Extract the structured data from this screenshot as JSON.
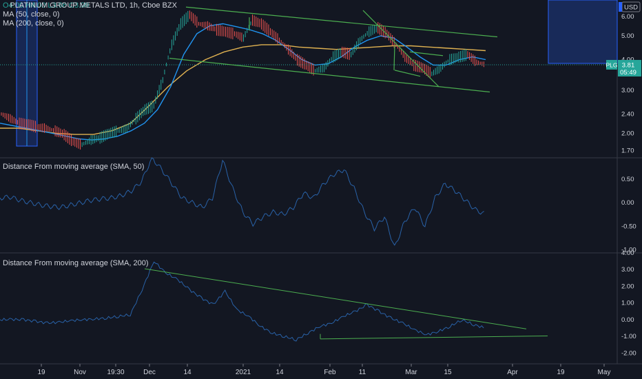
{
  "legend": {
    "symbol_line": "PLATINUM GROUP METALS LTD, 1h, Cboe BZX",
    "ohlc_line": "O4.00 H4.00 L3.96 C3.99",
    "ma50": "MA (50, close, 0)",
    "ma200": "MA (200, close, 0)",
    "pane2_title": "Distance From moving average (SMA, 50)",
    "pane3_title": "Distance From moving average (SMA, 200)"
  },
  "price_scale": {
    "currency": "USD",
    "symbol_badge": "PLG",
    "last_price": "3.81",
    "countdown": "05:49"
  },
  "colors": {
    "background": "#131722",
    "grid": "#2a2e39",
    "price_line": "#26a69a",
    "ma50": "#2196f3",
    "ma200": "#e0b251",
    "trendline": "#4caf50",
    "oscillator": "#2962a8",
    "accent": "#2962ff",
    "badge": "#26a69a"
  },
  "chart_data": [
    {
      "type": "line",
      "title": "PLATINUM GROUP METALS LTD, 1h, Cboe BZX",
      "ylim": [
        1.6,
        7.0
      ],
      "yticks": [
        "6.00",
        "5.00",
        "4.00",
        "3.00",
        "2.40",
        "2.00",
        "1.70"
      ],
      "y_scale": "log",
      "x_ticks": [
        "19",
        "Nov",
        "19:30",
        "Dec",
        "14",
        "2021",
        "14",
        "Feb",
        "11",
        "Mar",
        "15",
        "Apr",
        "19",
        "May"
      ],
      "series": [
        {
          "name": "price",
          "values": [
            2.4,
            2.3,
            2.2,
            2.18,
            2.12,
            2.1,
            2.05,
            1.98,
            1.85,
            1.8,
            1.88,
            1.92,
            2.0,
            2.05,
            2.1,
            2.3,
            2.5,
            2.6,
            3.3,
            4.6,
            5.6,
            6.1,
            5.6,
            5.5,
            5.3,
            5.2,
            5.1,
            4.9,
            5.8,
            5.6,
            5.2,
            4.8,
            4.4,
            4.0,
            3.8,
            3.6,
            3.7,
            4.1,
            4.3,
            4.2,
            4.8,
            5.2,
            5.4,
            5.1,
            4.6,
            4.1,
            3.8,
            3.7,
            3.5,
            3.7,
            4.0,
            4.1,
            4.2,
            3.9,
            3.81
          ]
        },
        {
          "name": "MA (50, close, 0)",
          "values": [
            2.2,
            2.15,
            2.1,
            2.05,
            2.0,
            1.95,
            1.9,
            1.88,
            1.9,
            1.95,
            2.05,
            2.2,
            2.5,
            3.1,
            4.2,
            5.1,
            5.5,
            5.6,
            5.45,
            5.3,
            5.1,
            4.8,
            4.4,
            4.0,
            3.8,
            3.85,
            4.1,
            4.5,
            4.8,
            5.0,
            4.9,
            4.5,
            4.1,
            3.8,
            3.8,
            4.0,
            4.1,
            4.0
          ]
        },
        {
          "name": "MA (200, close, 0)",
          "values": [
            2.1,
            2.1,
            2.05,
            2.0,
            1.98,
            1.98,
            2.05,
            2.2,
            2.6,
            3.1,
            3.6,
            4.0,
            4.3,
            4.5,
            4.6,
            4.6,
            4.5,
            4.45,
            4.4,
            4.45,
            4.5,
            4.55,
            4.55,
            4.5,
            4.45,
            4.4,
            4.35
          ]
        }
      ],
      "annotations": [
        "descending channel",
        "falling wedge"
      ]
    },
    {
      "type": "line",
      "title": "Distance From moving average (SMA, 50)",
      "ylim": [
        -1.05,
        0.95
      ],
      "yticks": [
        "0.50",
        "0.00",
        "-0.50",
        "-1.00"
      ],
      "series": [
        {
          "name": "Distance (SMA 50)",
          "values": [
            0.1,
            0.12,
            0.05,
            0.0,
            -0.05,
            -0.08,
            -0.1,
            -0.05,
            0.0,
            0.05,
            0.08,
            0.1,
            0.15,
            0.25,
            0.45,
            0.95,
            0.7,
            0.4,
            0.1,
            0.0,
            -0.1,
            0.1,
            0.9,
            0.3,
            -0.2,
            -0.45,
            -0.3,
            -0.2,
            -0.25,
            -0.1,
            0.2,
            0.1,
            0.4,
            0.6,
            0.7,
            0.3,
            -0.2,
            -0.55,
            -0.3,
            -0.95,
            -0.4,
            -0.1,
            -0.5,
            0.1,
            0.4,
            0.25,
            0.05,
            -0.15,
            -0.25
          ]
        }
      ]
    },
    {
      "type": "line",
      "title": "Distance From moving average (SMA, 200)",
      "ylim": [
        -2.6,
        4.0
      ],
      "yticks": [
        "4.00",
        "3.00",
        "2.00",
        "1.00",
        "0.00",
        "-1.00",
        "-2.00"
      ],
      "series": [
        {
          "name": "Distance (SMA 200)",
          "values": [
            0.0,
            0.02,
            0.0,
            -0.1,
            -0.2,
            -0.15,
            -0.05,
            0.0,
            0.05,
            0.1,
            0.2,
            0.3,
            1.8,
            3.5,
            2.8,
            2.4,
            1.8,
            1.3,
            0.9,
            1.7,
            0.6,
            0.2,
            -0.4,
            -0.8,
            -1.0,
            -1.2,
            -0.8,
            -0.4,
            -0.2,
            0.2,
            0.5,
            0.9,
            0.5,
            0.1,
            -0.2,
            -0.6,
            -0.9,
            -0.7,
            -0.4,
            0.0,
            -0.3,
            -0.5
          ]
        }
      ],
      "annotations": [
        "symmetrical triangle"
      ]
    }
  ]
}
